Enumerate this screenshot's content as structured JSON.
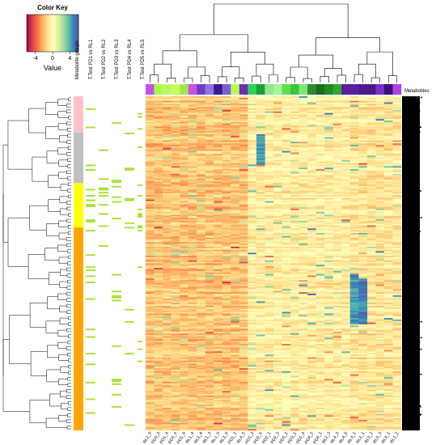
{
  "chart_data": {
    "type": "heatmap",
    "color_key": {
      "title": "Color Key",
      "axis_label": "Value",
      "ticks": [
        -4,
        0,
        4
      ],
      "range": [
        -6,
        6
      ],
      "palette": [
        "#9e0142",
        "#d53e4f",
        "#f46d43",
        "#fdae61",
        "#fee08b",
        "#ffffbf",
        "#e6f598",
        "#abdda4",
        "#66c2a5",
        "#3288bd",
        "#5e4fa2"
      ]
    },
    "annotation_headers": [
      "Metabolite groups",
      "T.Test PD1 vs RL1",
      "T.Test PD2 vs RL2",
      "T.Test PD3 vs RL3",
      "T.Test PD4 vs RL4",
      "T.Test PD5 vs RL5"
    ],
    "row_axis_label": "Metabolites",
    "column_labels": [
      "RL2_6",
      "PD3_3",
      "PD1_4",
      "PD3_4",
      "PD1_6",
      "RL1_4",
      "RL2_4",
      "RL1_3",
      "RL1_5",
      "RL3_6",
      "PD1_2",
      "RL4_5",
      "PD1_3",
      "PD2_5",
      "PD2_1",
      "PD2_3",
      "PD3_2",
      "PD3_1",
      "PD2_4",
      "PD4_2",
      "PD4_1",
      "RL2_3",
      "RL4_3",
      "RL4_6",
      "RL3_1",
      "RL2_1",
      "RL3_2",
      "RL5_3",
      "RL4_1",
      "RL2_2"
    ],
    "column_group_colors": [
      "#c154e8",
      "#a8ff3c",
      "#b9f56a",
      "#c8ff5a",
      "#9fe84a",
      "#d04fe0",
      "#6a3fc8",
      "#9370e0",
      "#3a1a8c",
      "#7a5fd8",
      "#b8ff4a",
      "#6b30b0",
      "#2ad64f",
      "#1e9e3a",
      "#8fe88a",
      "#a6f59a",
      "#5fe04a",
      "#38c838",
      "#7de870",
      "#2f8a2f",
      "#1a6e1a",
      "#228b22",
      "#34a834",
      "#5a1e9e",
      "#5a1e9e",
      "#4b1a8a",
      "#4b1a8a",
      "#7a30c8",
      "#3a1078",
      "#b040e8"
    ],
    "row_groups": [
      {
        "color": "#ffc0cb",
        "fraction": 0.109
      },
      {
        "color": "#c0c0c0",
        "fraction": 0.15
      },
      {
        "color": "#ffff00",
        "fraction": 0.134
      },
      {
        "color": "#ffa500",
        "fraction": 0.607
      }
    ],
    "significance_color": "#a6e22e",
    "row_label_count": 220,
    "value_range": [
      -6,
      6
    ]
  }
}
